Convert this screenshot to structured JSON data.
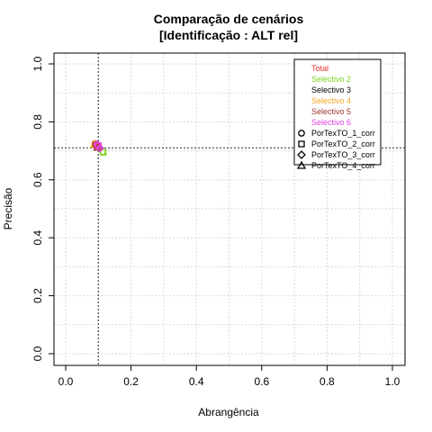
{
  "chart_data": {
    "type": "scatter",
    "title": "Comparação de cenários",
    "subtitle": "[Identificação : ALT rel]",
    "xlabel": "Abrangência",
    "ylabel": "Precisão",
    "xlim": [
      0,
      1
    ],
    "ylim": [
      0,
      1
    ],
    "x_ticks": [
      "0.0",
      "0.2",
      "0.4",
      "0.6",
      "0.8",
      "1.0"
    ],
    "y_ticks": [
      "0.0",
      "0.2",
      "0.4",
      "0.6",
      "0.8",
      "1.0"
    ],
    "grid": true,
    "legend_position": "top-right",
    "reference_lines": {
      "x": 0.1,
      "y": 0.71
    },
    "legend_colors": [
      {
        "label": "Total",
        "color": "#e8302a"
      },
      {
        "label": "Selectivo 2",
        "color": "#7ed321"
      },
      {
        "label": "Selectivo 3",
        "color": "#000000"
      },
      {
        "label": "Selectivo 4",
        "color": "#f5a623"
      },
      {
        "label": "Selectivo 5",
        "color": "#a0342a"
      },
      {
        "label": "Selectivo 6",
        "color": "#e040e0"
      }
    ],
    "legend_shapes": [
      {
        "label": "PorTexTO_1_corr",
        "shape": "circle"
      },
      {
        "label": "PorTexTO_2_corr",
        "shape": "square"
      },
      {
        "label": "PorTexTO_3_corr",
        "shape": "diamond"
      },
      {
        "label": "PorTexTO_4_corr",
        "shape": "triangle"
      }
    ],
    "points": [
      {
        "x": 0.09,
        "y": 0.725,
        "color": "#e8302a",
        "shape": "circle"
      },
      {
        "x": 0.1,
        "y": 0.715,
        "color": "#e8302a",
        "shape": "square"
      },
      {
        "x": 0.115,
        "y": 0.695,
        "color": "#7ed321",
        "shape": "square"
      },
      {
        "x": 0.113,
        "y": 0.697,
        "color": "#7ed321",
        "shape": "circle"
      },
      {
        "x": 0.095,
        "y": 0.718,
        "color": "#f5a623",
        "shape": "diamond"
      },
      {
        "x": 0.088,
        "y": 0.722,
        "color": "#f5a623",
        "shape": "triangle"
      },
      {
        "x": 0.092,
        "y": 0.72,
        "color": "#a0342a",
        "shape": "circle"
      },
      {
        "x": 0.098,
        "y": 0.712,
        "color": "#a0342a",
        "shape": "triangle"
      },
      {
        "x": 0.1,
        "y": 0.718,
        "color": "#e040e0",
        "shape": "square"
      },
      {
        "x": 0.096,
        "y": 0.722,
        "color": "#e040e0",
        "shape": "circle"
      },
      {
        "x": 0.104,
        "y": 0.71,
        "color": "#e040e0",
        "shape": "diamond"
      }
    ]
  }
}
